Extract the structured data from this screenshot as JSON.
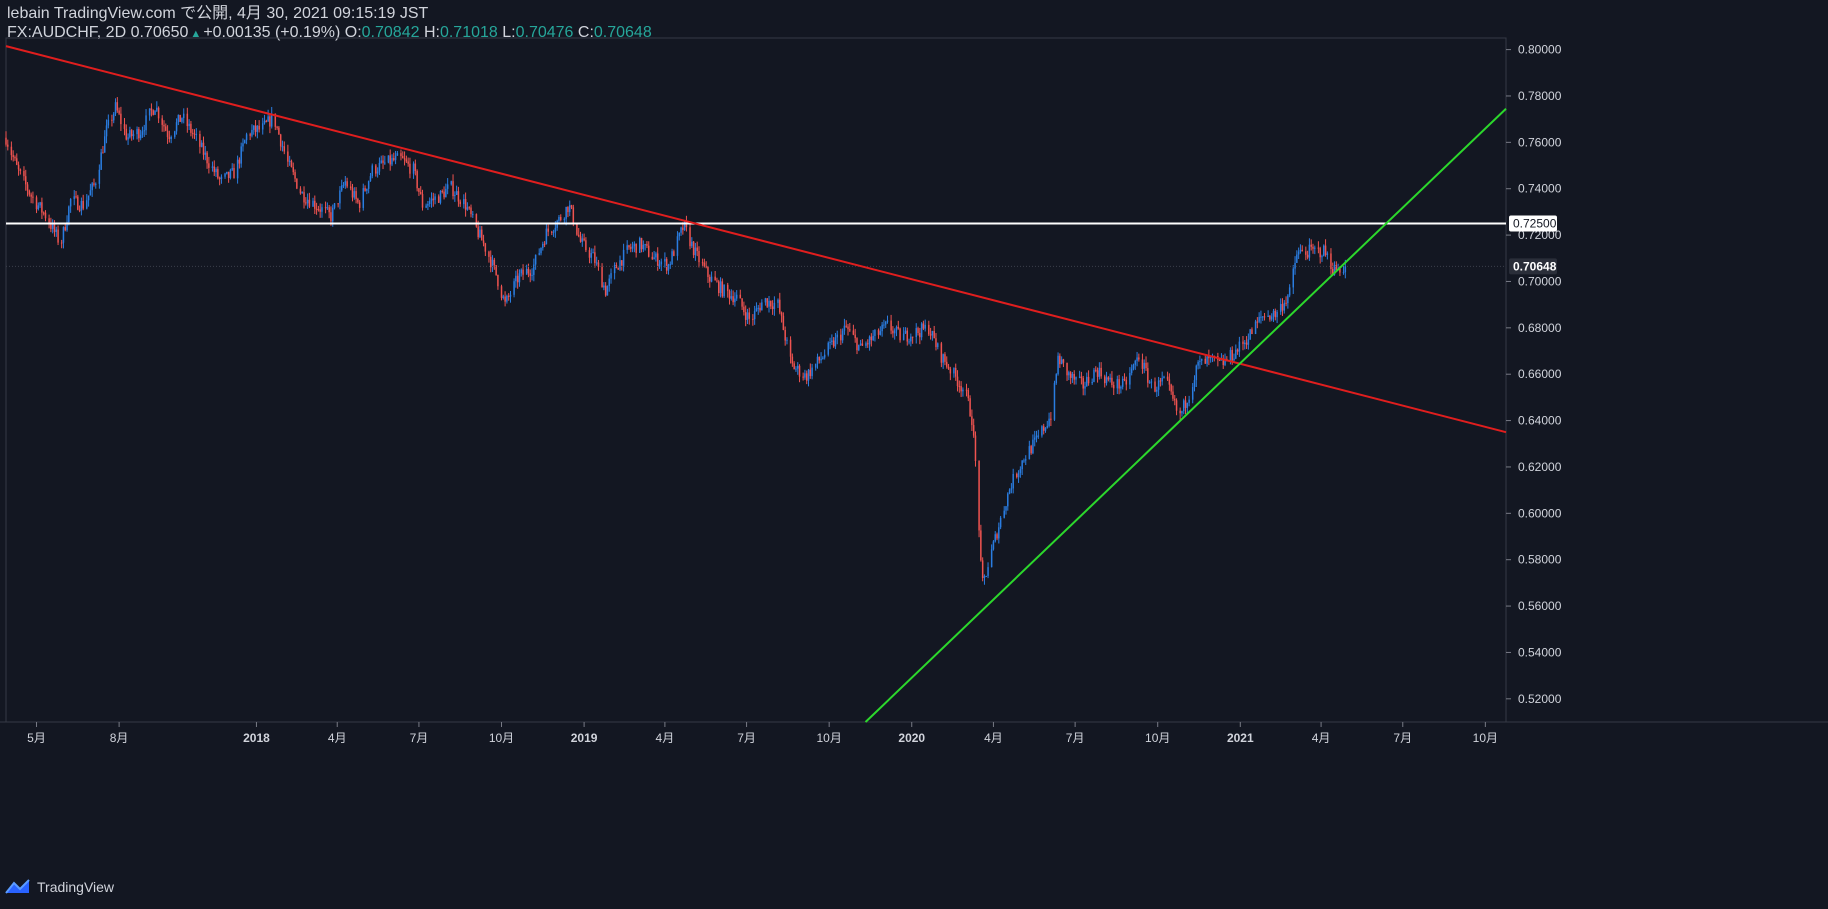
{
  "header": {
    "line1": "lebain TradingView.com で公開, 4月 30, 2021 09:15:19 JST",
    "symbol": "FX:AUDCHF, 2D",
    "price": "0.70650",
    "change": "+0.00135 (+0.19%)",
    "o_label": "O:",
    "o": "0.70842",
    "h_label": "H:",
    "h": "0.71018",
    "l_label": "L:",
    "l": "0.70476",
    "c_label": "C:",
    "c": "0.70648"
  },
  "footer": {
    "brand": "TradingView",
    "icon": "tradingview-logo-icon"
  },
  "colors": {
    "background": "#131722",
    "up": "#2a7de1",
    "down": "#ef5350",
    "resistance": "#e01e1e",
    "support": "#2cd82c",
    "horizontal": "#ffffff",
    "text": "#d1d4dc",
    "accent": "#26a69a"
  },
  "chart_data": {
    "type": "candlestick",
    "symbol": "FX:AUDCHF",
    "interval": "2D",
    "ylim": [
      0.51,
      0.805
    ],
    "y_ticks": [
      "0.80000",
      "0.78000",
      "0.76000",
      "0.74000",
      "0.72000",
      "0.70000",
      "0.68000",
      "0.66000",
      "0.64000",
      "0.62000",
      "0.60000",
      "0.58000",
      "0.56000",
      "0.54000",
      "0.52000"
    ],
    "x_ticks": [
      "5月",
      "8月",
      "2018",
      "4月",
      "7月",
      "10月",
      "2019",
      "4月",
      "7月",
      "10月",
      "2020",
      "4月",
      "7月",
      "10月",
      "2021",
      "4月",
      "7月",
      "10月"
    ],
    "x_tick_dates": [
      "2017-05-01",
      "2017-08-01",
      "2018-01-01",
      "2018-04-01",
      "2018-07-01",
      "2018-10-01",
      "2019-01-01",
      "2019-04-01",
      "2019-07-01",
      "2019-10-01",
      "2020-01-01",
      "2020-04-01",
      "2020-07-01",
      "2020-10-01",
      "2021-01-01",
      "2021-04-01",
      "2021-07-01",
      "2021-10-01"
    ],
    "xlim": [
      "2017-03-28",
      "2021-10-24"
    ],
    "price_path": [
      [
        "2017-03-28",
        0.762
      ],
      [
        "2017-04-10",
        0.748
      ],
      [
        "2017-04-25",
        0.737
      ],
      [
        "2017-05-12",
        0.728
      ],
      [
        "2017-05-28",
        0.716
      ],
      [
        "2017-06-08",
        0.735
      ],
      [
        "2017-06-22",
        0.733
      ],
      [
        "2017-07-05",
        0.742
      ],
      [
        "2017-07-18",
        0.765
      ],
      [
        "2017-07-28",
        0.775
      ],
      [
        "2017-08-10",
        0.762
      ],
      [
        "2017-08-25",
        0.765
      ],
      [
        "2017-09-10",
        0.776
      ],
      [
        "2017-09-25",
        0.763
      ],
      [
        "2017-10-10",
        0.771
      ],
      [
        "2017-10-25",
        0.762
      ],
      [
        "2017-11-08",
        0.752
      ],
      [
        "2017-11-22",
        0.743
      ],
      [
        "2017-12-08",
        0.747
      ],
      [
        "2017-12-22",
        0.764
      ],
      [
        "2018-01-08",
        0.766
      ],
      [
        "2018-01-20",
        0.771
      ],
      [
        "2018-02-05",
        0.751
      ],
      [
        "2018-02-20",
        0.738
      ],
      [
        "2018-03-08",
        0.733
      ],
      [
        "2018-03-25",
        0.728
      ],
      [
        "2018-04-10",
        0.743
      ],
      [
        "2018-04-25",
        0.733
      ],
      [
        "2018-05-10",
        0.748
      ],
      [
        "2018-05-25",
        0.751
      ],
      [
        "2018-06-10",
        0.753
      ],
      [
        "2018-06-25",
        0.748
      ],
      [
        "2018-07-05",
        0.733
      ],
      [
        "2018-07-25",
        0.737
      ],
      [
        "2018-08-05",
        0.741
      ],
      [
        "2018-08-22",
        0.733
      ],
      [
        "2018-09-05",
        0.721
      ],
      [
        "2018-09-15",
        0.713
      ],
      [
        "2018-09-25",
        0.703
      ],
      [
        "2018-10-05",
        0.69
      ],
      [
        "2018-10-20",
        0.702
      ],
      [
        "2018-11-05",
        0.706
      ],
      [
        "2018-11-20",
        0.721
      ],
      [
        "2018-12-05",
        0.727
      ],
      [
        "2018-12-15",
        0.733
      ],
      [
        "2018-12-28",
        0.717
      ],
      [
        "2019-01-12",
        0.71
      ],
      [
        "2019-01-25",
        0.696
      ],
      [
        "2019-02-05",
        0.706
      ],
      [
        "2019-02-20",
        0.714
      ],
      [
        "2019-03-05",
        0.716
      ],
      [
        "2019-03-20",
        0.71
      ],
      [
        "2019-04-05",
        0.707
      ],
      [
        "2019-04-22",
        0.724
      ],
      [
        "2019-05-05",
        0.712
      ],
      [
        "2019-05-20",
        0.702
      ],
      [
        "2019-06-05",
        0.696
      ],
      [
        "2019-06-20",
        0.693
      ],
      [
        "2019-07-05",
        0.683
      ],
      [
        "2019-07-20",
        0.692
      ],
      [
        "2019-08-05",
        0.69
      ],
      [
        "2019-08-20",
        0.664
      ],
      [
        "2019-09-05",
        0.659
      ],
      [
        "2019-09-20",
        0.666
      ],
      [
        "2019-10-05",
        0.673
      ],
      [
        "2019-10-20",
        0.68
      ],
      [
        "2019-11-05",
        0.671
      ],
      [
        "2019-11-20",
        0.676
      ],
      [
        "2019-12-05",
        0.681
      ],
      [
        "2019-12-20",
        0.676
      ],
      [
        "2020-01-05",
        0.678
      ],
      [
        "2020-01-20",
        0.68
      ],
      [
        "2020-02-01",
        0.669
      ],
      [
        "2020-02-15",
        0.661
      ],
      [
        "2020-03-01",
        0.652
      ],
      [
        "2020-03-08",
        0.641
      ],
      [
        "2020-03-14",
        0.612
      ],
      [
        "2020-03-19",
        0.568
      ],
      [
        "2020-03-25",
        0.576
      ],
      [
        "2020-04-05",
        0.592
      ],
      [
        "2020-04-20",
        0.612
      ],
      [
        "2020-05-05",
        0.624
      ],
      [
        "2020-05-20",
        0.632
      ],
      [
        "2020-06-05",
        0.643
      ],
      [
        "2020-06-12",
        0.667
      ],
      [
        "2020-06-25",
        0.659
      ],
      [
        "2020-07-10",
        0.655
      ],
      [
        "2020-07-25",
        0.662
      ],
      [
        "2020-08-10",
        0.656
      ],
      [
        "2020-08-25",
        0.655
      ],
      [
        "2020-09-10",
        0.668
      ],
      [
        "2020-09-25",
        0.654
      ],
      [
        "2020-10-10",
        0.657
      ],
      [
        "2020-10-25",
        0.641
      ],
      [
        "2020-11-05",
        0.652
      ],
      [
        "2020-11-15",
        0.664
      ],
      [
        "2020-11-30",
        0.666
      ],
      [
        "2020-12-10",
        0.664
      ],
      [
        "2020-12-25",
        0.669
      ],
      [
        "2021-01-10",
        0.676
      ],
      [
        "2021-01-25",
        0.685
      ],
      [
        "2021-02-10",
        0.686
      ],
      [
        "2021-02-25",
        0.695
      ],
      [
        "2021-03-05",
        0.712
      ],
      [
        "2021-03-20",
        0.713
      ],
      [
        "2021-04-05",
        0.713
      ],
      [
        "2021-04-15",
        0.705
      ],
      [
        "2021-04-29",
        0.7065
      ]
    ],
    "annotations": {
      "horizontal_level": "0.72500",
      "last_price": "0.70648",
      "resistance_line": [
        [
          "2017-03-28",
          0.8015
        ],
        [
          "2021-10-24",
          0.635
        ]
      ],
      "support_line": [
        [
          "2020-03-19",
          0.558
        ],
        [
          "2021-10-24",
          0.7745
        ]
      ]
    },
    "grid": false
  }
}
